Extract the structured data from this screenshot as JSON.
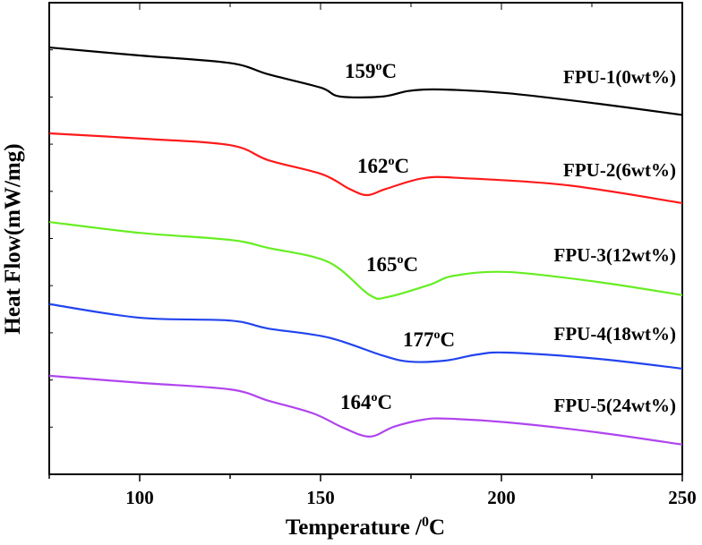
{
  "chart_data": {
    "type": "line",
    "title": "",
    "xlabel": {
      "text": "Temperature /",
      "sup": "0",
      "unit": "C"
    },
    "ylabel": "Heat Flow(mW/mg)",
    "xlim": [
      75,
      250
    ],
    "ylim": [
      0,
      100
    ],
    "y_units": "arbitrary (no tick labels printed)",
    "x_ticks": [
      "100",
      "150",
      "200",
      "250"
    ],
    "grid": false,
    "legend": "inline labels at right end of each curve",
    "series": [
      {
        "name": "FPU-1(0wt%)",
        "color": "#000000",
        "points": [
          [
            75,
            90.5
          ],
          [
            100,
            88.8
          ],
          [
            125,
            87.2
          ],
          [
            135.6,
            84.8
          ],
          [
            150,
            82.0
          ],
          [
            155.4,
            80.1
          ],
          [
            167.1,
            80.1
          ],
          [
            174.5,
            81.3
          ],
          [
            183.4,
            81.6
          ],
          [
            201.7,
            80.8
          ],
          [
            226.5,
            78.6
          ],
          [
            250,
            76.2
          ]
        ],
        "peak": {
          "value": "159",
          "sup": "o",
          "unit": "C"
        }
      },
      {
        "name": "FPU-2(6wt%)",
        "color": "#ff1a1a",
        "points": [
          [
            75,
            72.3
          ],
          [
            100,
            71.2
          ],
          [
            125,
            69.8
          ],
          [
            135.6,
            66.6
          ],
          [
            150.5,
            63.6
          ],
          [
            158,
            60.5
          ],
          [
            162.9,
            59.2
          ],
          [
            168,
            60.5
          ],
          [
            178.5,
            62.8
          ],
          [
            189.4,
            62.8
          ],
          [
            218.1,
            61.3
          ],
          [
            250,
            57.5
          ]
        ],
        "peak": {
          "value": "162",
          "sup": "o",
          "unit": "C"
        }
      },
      {
        "name": "FPU-3(12wt%)",
        "color": "#66ee22",
        "points": [
          [
            75,
            53.5
          ],
          [
            100,
            51.2
          ],
          [
            125,
            49.7
          ],
          [
            135.6,
            48.0
          ],
          [
            152.2,
            45.0
          ],
          [
            163.6,
            38.0
          ],
          [
            168.6,
            37.6
          ],
          [
            180.2,
            40.2
          ],
          [
            186.9,
            42.1
          ],
          [
            201.7,
            42.9
          ],
          [
            226.5,
            40.8
          ],
          [
            250,
            38.0
          ]
        ],
        "peak": {
          "value": "165",
          "sup": "o",
          "unit": "C"
        }
      },
      {
        "name": "FPU-4(18wt%)",
        "color": "#2244ee",
        "points": [
          [
            75,
            36.1
          ],
          [
            100,
            33.2
          ],
          [
            125,
            32.6
          ],
          [
            135.6,
            30.9
          ],
          [
            152.2,
            29.0
          ],
          [
            167.1,
            25.2
          ],
          [
            174.5,
            23.9
          ],
          [
            184.4,
            24.1
          ],
          [
            193.3,
            25.4
          ],
          [
            201.7,
            25.8
          ],
          [
            226.5,
            24.5
          ],
          [
            250,
            22.4
          ]
        ],
        "peak": {
          "value": "177",
          "sup": "o",
          "unit": "C"
        }
      },
      {
        "name": "FPU-5(24wt%)",
        "color": "#b044ee",
        "points": [
          [
            75,
            20.9
          ],
          [
            100,
            19.4
          ],
          [
            125,
            18.0
          ],
          [
            135.6,
            15.6
          ],
          [
            148,
            12.9
          ],
          [
            156.2,
            9.9
          ],
          [
            163.6,
            8.0
          ],
          [
            170.3,
            10.1
          ],
          [
            178.5,
            11.6
          ],
          [
            185.1,
            11.8
          ],
          [
            201.7,
            11.0
          ],
          [
            226.5,
            8.9
          ],
          [
            250,
            6.3
          ]
        ],
        "peak": {
          "value": "164",
          "sup": "o",
          "unit": "C"
        }
      }
    ]
  }
}
